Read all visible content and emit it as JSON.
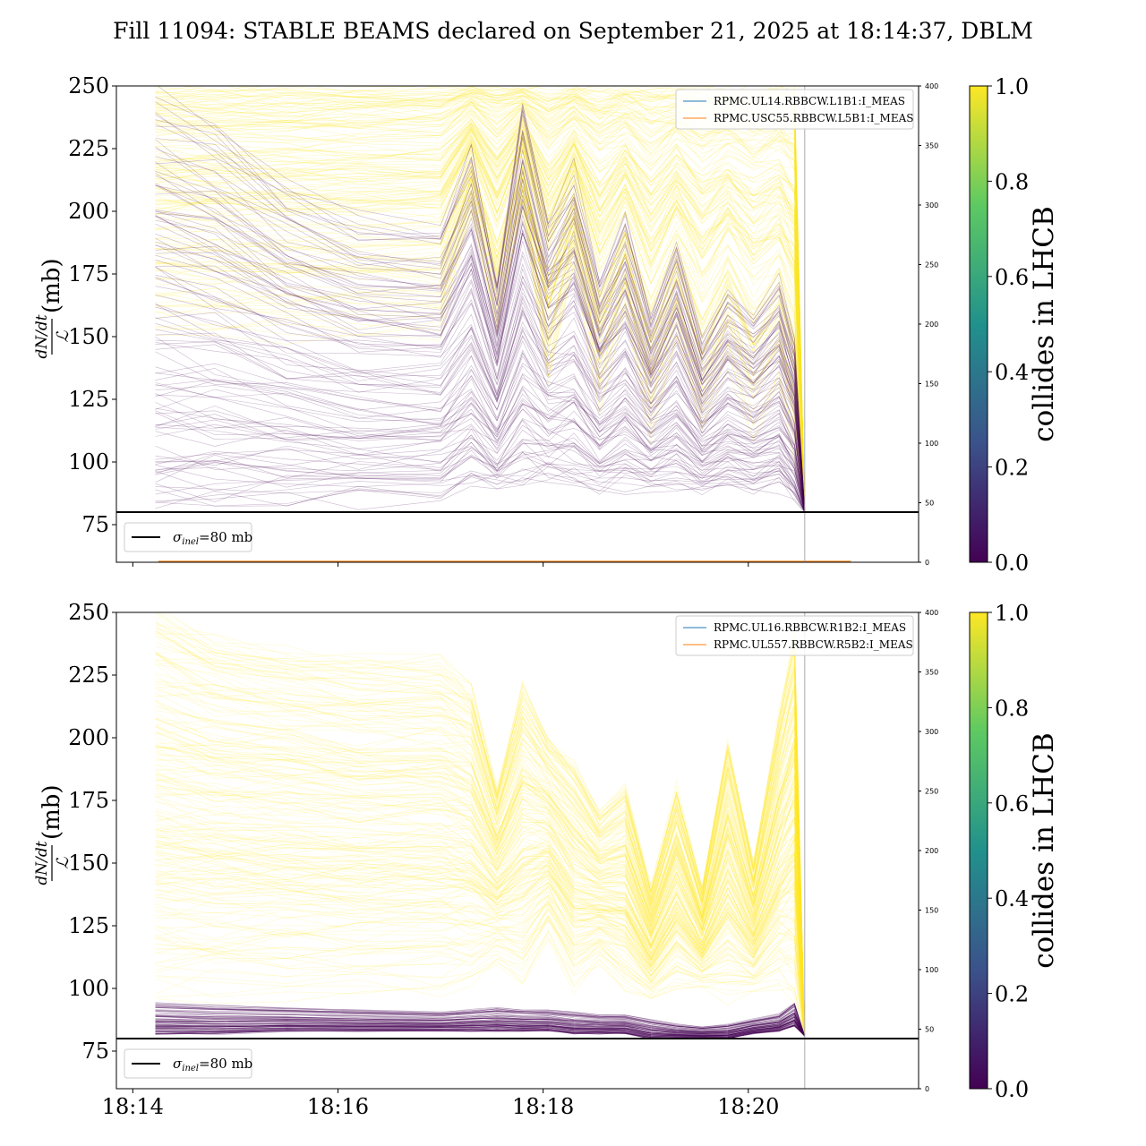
{
  "title": "Fill 11094: STABLE BEAMS declared on September 21, 2025 at 18:14:37, DBLM",
  "chart_data": {
    "type": "line",
    "x_unit": "minutes after 18:14",
    "xlim": [
      -0.16,
      7.66
    ],
    "xticks": [
      {
        "v": 0,
        "label": "18:14"
      },
      {
        "v": 2,
        "label": "18:16"
      },
      {
        "v": 4,
        "label": "18:18"
      },
      {
        "v": 6,
        "label": "18:20"
      }
    ],
    "vline_x": 6.55,
    "ylim": [
      60,
      250
    ],
    "yticks": [
      75,
      100,
      125,
      150,
      175,
      200,
      225,
      250
    ],
    "ylabel_num": "dN/dt",
    "ylabel_den": "ℒ",
    "ylabel_unit": "(mb)",
    "right_ylim": [
      0,
      400
    ],
    "right_yticks": [
      0,
      50,
      100,
      150,
      200,
      250,
      300,
      350,
      400
    ],
    "hline": {
      "y": 80,
      "label_sym": "σ",
      "label_sub": "inel",
      "label_rest": "=80 mb"
    },
    "colorbar": {
      "label": "collides in LHCB",
      "range": [
        0,
        1
      ],
      "ticks": [
        "0.0",
        "0.2",
        "0.4",
        "0.6",
        "0.8",
        "1.0"
      ],
      "colors": [
        "#440154",
        "#3b528b",
        "#21918c",
        "#5ec962",
        "#fde725"
      ]
    },
    "knots": [
      0.22,
      0.8,
      1.5,
      2.2,
      3.0,
      3.3,
      3.55,
      3.8,
      4.05,
      4.3,
      4.55,
      4.8,
      5.05,
      5.3,
      5.55,
      5.8,
      6.05,
      6.3,
      6.45,
      6.55
    ],
    "panels": [
      {
        "legend": [
          "RPMC.UL14.RBBCW.L1B1:I_MEAS",
          "RPMC.USC55.RBBCW.L5B1:I_MEAS"
        ],
        "legend_colors": [
          "#1f77b4",
          "#ff7f0e"
        ],
        "current_lines": [
          {
            "name": "RPMC.USC55.RBBCW.L5B1:I_MEAS",
            "value": 0,
            "x_range": [
              0.25,
              7.0
            ]
          }
        ],
        "bands": [
          {
            "collides": 1,
            "count": 160,
            "opacity": 0.28,
            "lo": [
              150,
              150,
              150,
              150,
              150,
              200,
              150,
              200,
              130,
              180,
              120,
              160,
              110,
              150,
              110,
              140,
              110,
              130,
              100,
              81
            ],
            "hi": [
              250,
              250,
              250,
              250,
              250,
              250,
              250,
              250,
              250,
              250,
              250,
              250,
              250,
              250,
              250,
              250,
              250,
              250,
              250,
              81
            ]
          },
          {
            "collides": 0,
            "count": 110,
            "opacity": 0.28,
            "lo": [
              82,
              83,
              84,
              85,
              86,
              90,
              88,
              90,
              92,
              90,
              88,
              90,
              90,
              90,
              88,
              90,
              88,
              90,
              85,
              80
            ],
            "hi": [
              250,
              240,
              215,
              200,
              195,
              230,
              175,
              250,
              200,
              220,
              175,
              200,
              160,
              190,
              150,
              170,
              160,
              175,
              150,
              81
            ]
          }
        ]
      },
      {
        "legend": [
          "RPMC.UL16.RBBCW.R1B2:I_MEAS",
          "RPMC.UL557.RBBCW.R5B2:I_MEAS"
        ],
        "legend_colors": [
          "#1f77b4",
          "#ff7f0e"
        ],
        "current_lines": [],
        "bands": [
          {
            "collides": 1,
            "count": 220,
            "opacity": 0.22,
            "lo": [
              95,
              96,
              97,
              98,
              98,
              100,
              110,
              100,
              120,
              100,
              110,
              100,
              95,
              100,
              100,
              95,
              98,
              100,
              95,
              81
            ],
            "hi": [
              250,
              240,
              235,
              230,
              230,
              220,
              180,
              220,
              200,
              190,
              170,
              180,
              140,
              180,
              140,
              200,
              150,
              210,
              240,
              81
            ]
          },
          {
            "collides": 0,
            "count": 90,
            "opacity": 0.35,
            "lo": [
              82,
              82,
              83,
              83,
              83,
              83,
              83,
              83,
              83,
              82,
              82,
              82,
              80,
              80,
              80,
              80,
              82,
              83,
              85,
              81
            ],
            "hi": [
              95,
              94,
              93,
              92,
              91,
              92,
              93,
              92,
              92,
              91,
              90,
              90,
              88,
              86,
              85,
              86,
              88,
              90,
              95,
              81
            ]
          }
        ]
      }
    ]
  }
}
